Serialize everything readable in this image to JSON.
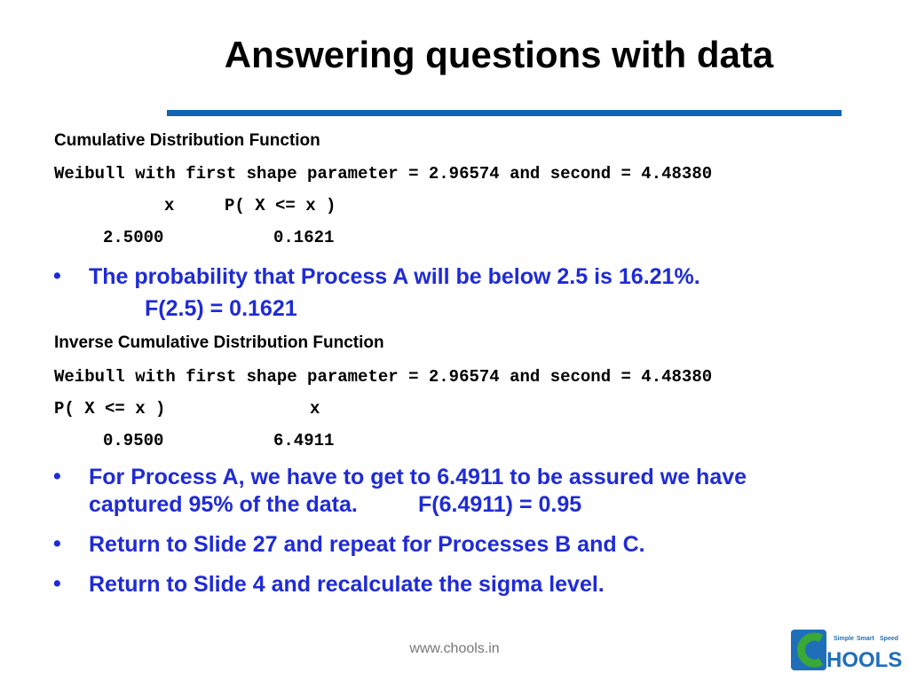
{
  "title": "Answering questions with data",
  "cdf": {
    "heading": "Cumulative Distribution Function",
    "dist_line": "Weibull with first shape parameter = 2.96574 and second = 4.48380",
    "col_x": "x",
    "col_p": "P( X <= x )",
    "val_x": "2.5000",
    "val_p": "0.1621"
  },
  "bullet1": {
    "text": "The probability that Process A will be below 2.5 is 16.21%.",
    "formula": "F(2.5) = 0.1621"
  },
  "icdf": {
    "heading": "Inverse Cumulative Distribution Function",
    "dist_line": "Weibull with first shape parameter = 2.96574 and second = 4.48380",
    "col_p": "P( X <= x )",
    "col_x": "x",
    "val_p": "0.9500",
    "val_x": "6.4911"
  },
  "bullets": [
    {
      "line1": "For Process A, we have to get to 6.4911 to be assured we have",
      "line2": "captured 95% of the data.",
      "formula": "F(6.4911) = 0.95"
    },
    {
      "line1": "Return to Slide 27 and repeat for Processes B and C."
    },
    {
      "line1": "Return to Slide 4 and recalculate the sigma level."
    }
  ],
  "bullet_glyph": "•",
  "footer": "www.chools.in",
  "logo": {
    "wordmark": "HOOLS",
    "tagline": [
      "Simple",
      "Smart",
      "Speed"
    ],
    "colors": {
      "blue": "#1f6fb8",
      "green": "#39a935"
    }
  },
  "colors": {
    "accent": "#0f64b4",
    "bullet_text": "#1f2bd6"
  }
}
